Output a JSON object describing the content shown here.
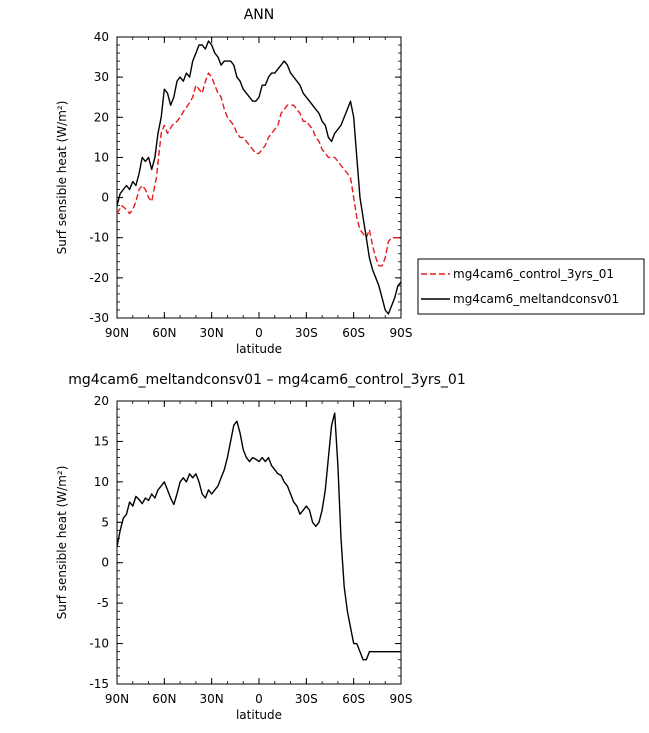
{
  "chart_data": [
    {
      "type": "line",
      "title": "ANN",
      "xlabel": "latitude",
      "ylabel": "Surf sensible heat (W/m²)",
      "xlim": [
        90,
        -90
      ],
      "ylim": [
        -30,
        40
      ],
      "xticks": [
        {
          "value": 90,
          "label": "90N"
        },
        {
          "value": 60,
          "label": "60N"
        },
        {
          "value": 30,
          "label": "30N"
        },
        {
          "value": 0,
          "label": "0"
        },
        {
          "value": -30,
          "label": "30S"
        },
        {
          "value": -60,
          "label": "60S"
        },
        {
          "value": -90,
          "label": "90S"
        }
      ],
      "yticks": [
        -30,
        -20,
        -10,
        0,
        10,
        20,
        30,
        40
      ],
      "grid": false,
      "legend": "right",
      "series": [
        {
          "name": "mg4cam6_control_3yrs_01",
          "color": "#e41a1c",
          "dash": "dashed",
          "x": [
            90,
            87,
            84,
            82,
            80,
            78,
            76,
            74,
            72,
            70,
            68,
            65,
            62,
            60,
            58,
            55,
            52,
            50,
            47,
            45,
            42,
            40,
            38,
            36,
            34,
            32,
            30,
            28,
            26,
            24,
            22,
            20,
            18,
            16,
            14,
            12,
            10,
            8,
            6,
            4,
            2,
            0,
            -2,
            -4,
            -6,
            -8,
            -10,
            -12,
            -14,
            -16,
            -18,
            -20,
            -22,
            -24,
            -26,
            -28,
            -30,
            -32,
            -34,
            -36,
            -38,
            -40,
            -42,
            -44,
            -46,
            -48,
            -50,
            -52,
            -54,
            -56,
            -58,
            -60,
            -62,
            -64,
            -66,
            -68,
            -70,
            -72,
            -74,
            -76,
            -78,
            -80,
            -82,
            -84,
            -86,
            -88,
            -90
          ],
          "values": [
            -4,
            -2,
            -3,
            -4,
            -3,
            -1,
            2,
            3,
            2,
            0,
            -1,
            5,
            16,
            18,
            16,
            18,
            19,
            20,
            22,
            23,
            25,
            28,
            27,
            26,
            29,
            31,
            30,
            28,
            26,
            25,
            22,
            20,
            19,
            18,
            16,
            15,
            15,
            14,
            13,
            12,
            11,
            11,
            12,
            13,
            15,
            16,
            17,
            18,
            21,
            22,
            23,
            23,
            23,
            22,
            21,
            19,
            19,
            18,
            17,
            15,
            14,
            12,
            11,
            10,
            10,
            10,
            9,
            8,
            7,
            6,
            5,
            0,
            -5,
            -8,
            -9,
            -10,
            -8,
            -12,
            -15,
            -17,
            -17,
            -15,
            -11,
            -10,
            -10,
            -10,
            -10
          ]
        },
        {
          "name": "mg4cam6_meltandconsv01",
          "color": "#000000",
          "dash": "solid",
          "x": [
            90,
            88,
            86,
            84,
            82,
            80,
            78,
            76,
            74,
            72,
            70,
            68,
            66,
            64,
            62,
            60,
            58,
            56,
            54,
            52,
            50,
            48,
            46,
            44,
            42,
            40,
            38,
            36,
            34,
            32,
            30,
            28,
            26,
            24,
            22,
            20,
            18,
            16,
            14,
            12,
            10,
            8,
            6,
            4,
            2,
            0,
            -2,
            -4,
            -6,
            -8,
            -10,
            -12,
            -14,
            -16,
            -18,
            -20,
            -22,
            -24,
            -26,
            -28,
            -30,
            -32,
            -34,
            -36,
            -38,
            -40,
            -42,
            -44,
            -46,
            -48,
            -50,
            -52,
            -54,
            -56,
            -58,
            -60,
            -62,
            -64,
            -66,
            -68,
            -70,
            -72,
            -74,
            -76,
            -78,
            -80,
            -82,
            -84,
            -86,
            -88,
            -90
          ],
          "values": [
            -2,
            1,
            2,
            3,
            2,
            4,
            3,
            6,
            10,
            9,
            10,
            7,
            10,
            16,
            20,
            27,
            26,
            23,
            25,
            29,
            30,
            29,
            31,
            30,
            34,
            36,
            38,
            38,
            37,
            39,
            38,
            36,
            35,
            33,
            34,
            34,
            34,
            33,
            30,
            29,
            27,
            26,
            25,
            24,
            24,
            25,
            28,
            28,
            30,
            31,
            31,
            32,
            33,
            34,
            33,
            31,
            30,
            29,
            28,
            26,
            25,
            24,
            23,
            22,
            21,
            19,
            18,
            15,
            14,
            16,
            17,
            18,
            20,
            22,
            24,
            20,
            10,
            0,
            -5,
            -10,
            -15,
            -18,
            -20,
            -22,
            -25,
            -28,
            -29,
            -27,
            -25,
            -22,
            -21
          ]
        }
      ]
    },
    {
      "type": "line",
      "title": "mg4cam6_meltandconsv01 – mg4cam6_control_3yrs_01",
      "xlabel": "latitude",
      "ylabel": "Surf sensible heat (W/m²)",
      "xlim": [
        90,
        -90
      ],
      "ylim": [
        -15,
        20
      ],
      "xticks": [
        {
          "value": 90,
          "label": "90N"
        },
        {
          "value": 60,
          "label": "60N"
        },
        {
          "value": 30,
          "label": "30N"
        },
        {
          "value": 0,
          "label": "0"
        },
        {
          "value": -30,
          "label": "30S"
        },
        {
          "value": -60,
          "label": "60S"
        },
        {
          "value": -90,
          "label": "90S"
        }
      ],
      "yticks": [
        -15,
        -10,
        -5,
        0,
        5,
        10,
        15,
        20
      ],
      "grid": false,
      "series": [
        {
          "color": "#000000",
          "dash": "solid",
          "x": [
            90,
            88,
            86,
            84,
            82,
            80,
            78,
            76,
            74,
            72,
            70,
            68,
            66,
            64,
            62,
            60,
            58,
            56,
            54,
            52,
            50,
            48,
            46,
            44,
            42,
            40,
            38,
            36,
            34,
            32,
            30,
            28,
            26,
            24,
            22,
            20,
            18,
            16,
            14,
            12,
            10,
            8,
            6,
            4,
            2,
            0,
            -2,
            -4,
            -6,
            -8,
            -10,
            -12,
            -14,
            -16,
            -18,
            -20,
            -22,
            -24,
            -26,
            -28,
            -30,
            -32,
            -34,
            -36,
            -38,
            -40,
            -42,
            -44,
            -46,
            -48,
            -50,
            -52,
            -54,
            -56,
            -58,
            -60,
            -62,
            -64,
            -66,
            -68,
            -70,
            -72,
            -74,
            -76,
            -78,
            -80,
            -82,
            -84,
            -86,
            -88,
            -90
          ],
          "values": [
            2,
            4,
            5.5,
            6,
            7.5,
            7,
            8.2,
            7.8,
            7.3,
            8,
            7.7,
            8.5,
            8,
            9,
            9.5,
            10,
            9,
            8,
            7.2,
            8.5,
            10,
            10.5,
            10,
            11,
            10.5,
            11,
            10,
            8.5,
            8,
            9,
            8.5,
            9,
            9.5,
            10.5,
            11.5,
            13,
            15,
            17,
            17.5,
            16,
            14,
            13,
            12.5,
            13,
            12.8,
            12.5,
            13,
            12.5,
            13,
            12,
            11.5,
            11,
            10.8,
            10,
            9.5,
            8.5,
            7.5,
            7,
            6,
            6.5,
            7,
            6.5,
            5,
            4.5,
            5,
            6.5,
            9,
            13,
            17,
            18.5,
            12,
            3,
            -3,
            -6,
            -8,
            -10,
            -10,
            -11,
            -12,
            -12,
            -11,
            -11,
            -11,
            -11,
            -11,
            -11,
            -11,
            -11,
            -11,
            -11,
            -11
          ]
        }
      ]
    }
  ]
}
